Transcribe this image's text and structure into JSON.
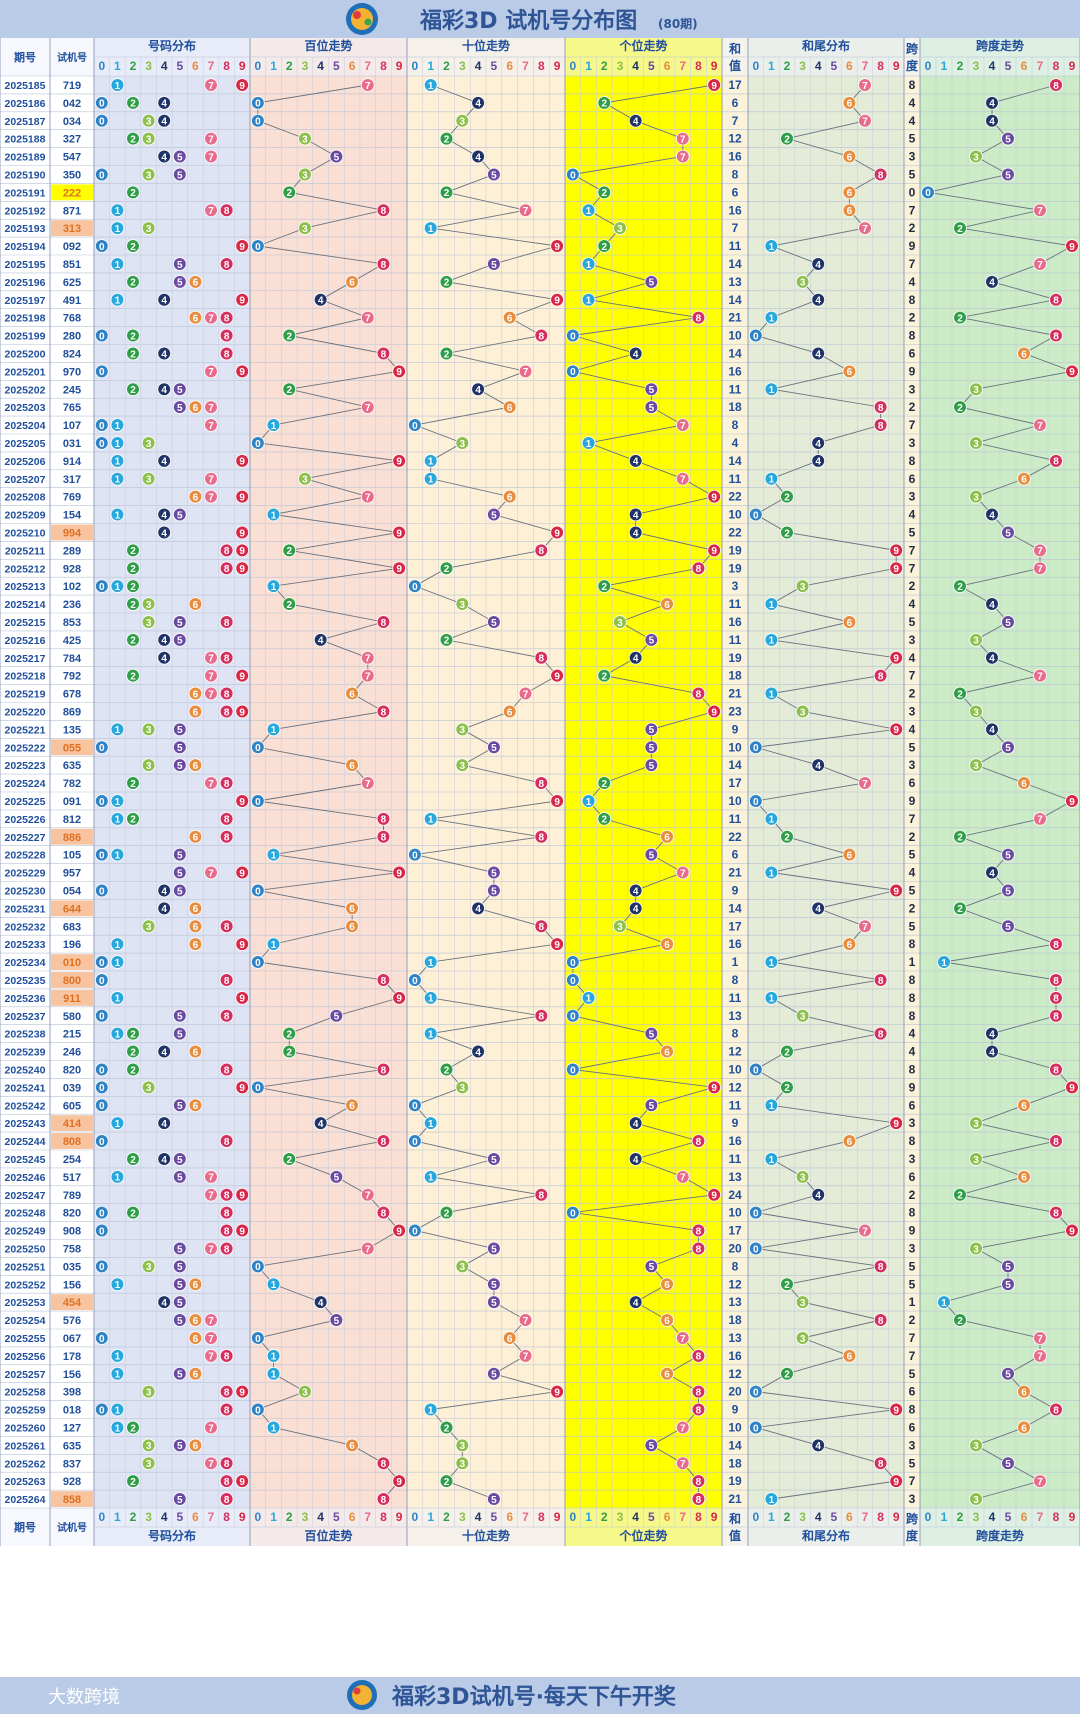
{
  "header": {
    "title": "福彩3D 试机号分布图",
    "subtitle": "(80期)"
  },
  "footer": {
    "slogan": "福彩3D试机号·每天下午开奖",
    "watermark": "大数跨境"
  },
  "columns": {
    "period": "期号",
    "number": "试机号",
    "distribution": "号码分布",
    "hundreds": "百位走势",
    "tens": "十位走势",
    "units": "个位走势",
    "sum_top": "和",
    "sum_bottom": "值",
    "sum_tail": "和尾分布",
    "span_top": "跨",
    "span_bottom": "度",
    "span_trend": "跨度走势",
    "digits": [
      "0",
      "1",
      "2",
      "3",
      "4",
      "5",
      "6",
      "7",
      "8",
      "9"
    ]
  },
  "colors": {
    "title_bar": "#b9cbe6",
    "title_text": "#2f5597",
    "text_blue": "#1f4e9c",
    "dist_bg": "#dfe4f4",
    "hundreds_bg": "#fae0d4",
    "tens_bg": "#fdf0d6",
    "units_bg": "#ffff00",
    "sum_bg": "#fbf3d9",
    "tail_bg": "#e4ebd7",
    "span_bg": "#cbecc6",
    "triple_highlight": "#ffff00",
    "pair_highlight": "#f8c4a0",
    "ball_colors": [
      "#2e83c7",
      "#28a7dc",
      "#2e9e47",
      "#8cc04a",
      "#1f3366",
      "#6a4aa0",
      "#e88c3e",
      "#e96b8c",
      "#d62d5f",
      "#d92646"
    ]
  },
  "chart_data": {
    "type": "table",
    "title": "福彩3D 试机号分布图",
    "periods": [
      "2025185",
      "2025186",
      "2025187",
      "2025188",
      "2025189",
      "2025190",
      "2025191",
      "2025192",
      "2025193",
      "2025194",
      "2025195",
      "2025196",
      "2025197",
      "2025198",
      "2025199",
      "2025200",
      "2025201",
      "2025202",
      "2025203",
      "2025204",
      "2025205",
      "2025206",
      "2025207",
      "2025208",
      "2025209",
      "2025210",
      "2025211",
      "2025212",
      "2025213",
      "2025214",
      "2025215",
      "2025216",
      "2025217",
      "2025218",
      "2025219",
      "2025220",
      "2025221",
      "2025222",
      "2025223",
      "2025224",
      "2025225",
      "2025226",
      "2025227",
      "2025228",
      "2025229",
      "2025230",
      "2025231",
      "2025232",
      "2025233",
      "2025234",
      "2025235",
      "2025236",
      "2025237",
      "2025238",
      "2025239",
      "2025240",
      "2025241",
      "2025242",
      "2025243",
      "2025244",
      "2025245",
      "2025246",
      "2025247",
      "2025248",
      "2025249",
      "2025250",
      "2025251",
      "2025252",
      "2025253",
      "2025254",
      "2025255",
      "2025256",
      "2025257",
      "2025258",
      "2025259",
      "2025260",
      "2025261",
      "2025262",
      "2025263",
      "2025264"
    ],
    "numbers": [
      "719",
      "042",
      "034",
      "327",
      "547",
      "350",
      "222",
      "871",
      "313",
      "092",
      "851",
      "625",
      "491",
      "768",
      "280",
      "824",
      "970",
      "245",
      "765",
      "107",
      "031",
      "914",
      "317",
      "769",
      "154",
      "994",
      "289",
      "928",
      "102",
      "236",
      "853",
      "425",
      "784",
      "792",
      "678",
      "869",
      "135",
      "055",
      "635",
      "782",
      "091",
      "812",
      "886",
      "105",
      "957",
      "054",
      "644",
      "683",
      "196",
      "010",
      "800",
      "911",
      "580",
      "215",
      "246",
      "820",
      "039",
      "605",
      "414",
      "808",
      "254",
      "517",
      "789",
      "820",
      "908",
      "758",
      "035",
      "156",
      "454",
      "576",
      "067",
      "178",
      "156",
      "398",
      "018",
      "127",
      "635",
      "837",
      "928",
      "858"
    ]
  }
}
